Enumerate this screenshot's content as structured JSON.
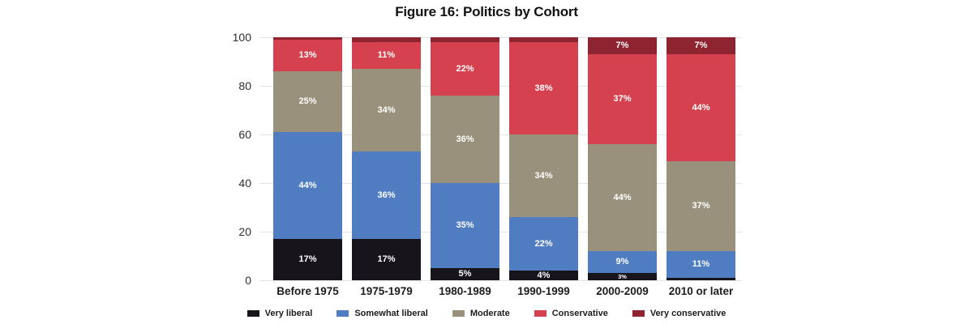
{
  "chart_data": {
    "type": "bar",
    "variant": "stacked-percent",
    "title": "Figure 16: Politics by Cohort",
    "categories": [
      "Before 1975",
      "1975-1979",
      "1980-1989",
      "1990-1999",
      "2000-2009",
      "2010 or later"
    ],
    "series": [
      {
        "name": "Very liberal",
        "color": "#17151b",
        "values": [
          17,
          17,
          5,
          4,
          3,
          1
        ],
        "labels": [
          "17%",
          "17%",
          "5%",
          "4%",
          "3%",
          ""
        ]
      },
      {
        "name": "Somewhat liberal",
        "color": "#507dc2",
        "values": [
          44,
          36,
          35,
          22,
          9,
          11
        ],
        "labels": [
          "44%",
          "36%",
          "35%",
          "22%",
          "9%",
          "11%"
        ]
      },
      {
        "name": "Moderate",
        "color": "#99917c",
        "values": [
          25,
          34,
          36,
          34,
          44,
          37
        ],
        "labels": [
          "25%",
          "34%",
          "36%",
          "34%",
          "44%",
          "37%"
        ]
      },
      {
        "name": "Conservative",
        "color": "#d5414f",
        "values": [
          13,
          11,
          22,
          38,
          37,
          44
        ],
        "labels": [
          "13%",
          "11%",
          "22%",
          "38%",
          "37%",
          "44%"
        ]
      },
      {
        "name": "Very conservative",
        "color": "#8e2430",
        "values": [
          1,
          2,
          2,
          2,
          7,
          7
        ],
        "labels": [
          "",
          "",
          "",
          "",
          "7%",
          "7%"
        ]
      }
    ],
    "y_ticks": [
      0,
      20,
      40,
      60,
      80,
      100
    ],
    "ylim": [
      0,
      100
    ],
    "xlabel": "",
    "ylabel": "",
    "grid": "horizontal",
    "legend_position": "bottom",
    "label_text_color": "#ffffff"
  }
}
